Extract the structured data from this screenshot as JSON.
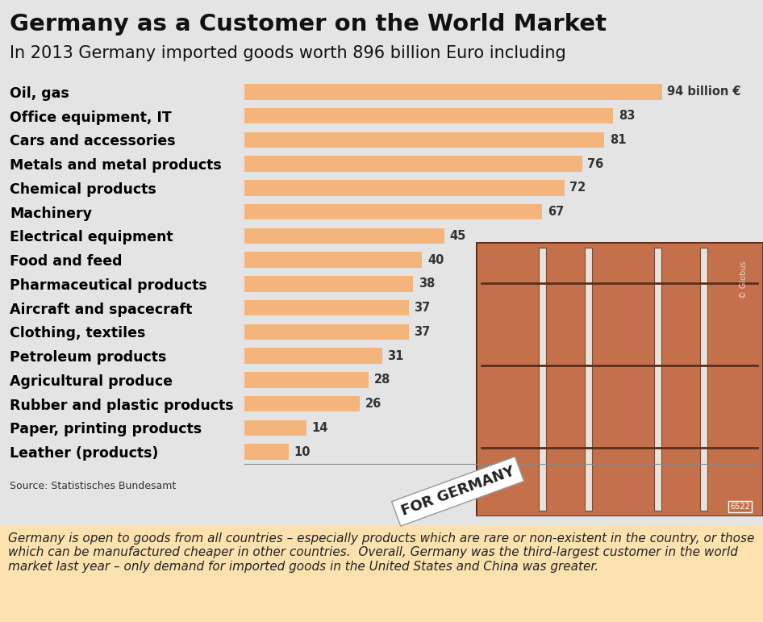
{
  "chart_data": {
    "type": "bar",
    "orientation": "horizontal",
    "title": "Germany as a Customer on the World Market",
    "subtitle": "In 2013 Germany imported goods worth 896 billion Euro including",
    "categories": [
      "Oil, gas",
      "Office equipment, IT",
      "Cars and accessories",
      "Metals and metal products",
      "Chemical products",
      "Machinery",
      "Electrical equipment",
      "Food and feed",
      "Pharmaceutical products",
      "Aircraft and spacecraft",
      "Clothing, textiles",
      "Petroleum products",
      "Agricultural produce",
      "Rubber and plastic products",
      "Paper, printing products",
      "Leather (products)"
    ],
    "values": [
      94,
      83,
      81,
      76,
      72,
      67,
      45,
      40,
      38,
      37,
      37,
      31,
      28,
      26,
      14,
      10
    ],
    "value_labels": [
      "94 billion €",
      "83",
      "81",
      "76",
      "72",
      "67",
      "45",
      "40",
      "38",
      "37",
      "37",
      "31",
      "28",
      "26",
      "14",
      "10"
    ],
    "data_labels": true,
    "color": "#f4b57c",
    "xlim": [
      0,
      115
    ],
    "tick_labels": "y",
    "grid": false,
    "source": "Source: Statistisches Bundesamt",
    "note": "Germany is open to goods from all countries – especially products which are rare or non-existent in the country, or those which can be manufactured cheaper in other countries.  Overall, Germany was the third-largest customer in the world market last year – only demand for imported goods in the United States and China was greater.",
    "annotations": [
      "FOR GERMANY",
      "© Globus",
      "6522"
    ]
  }
}
